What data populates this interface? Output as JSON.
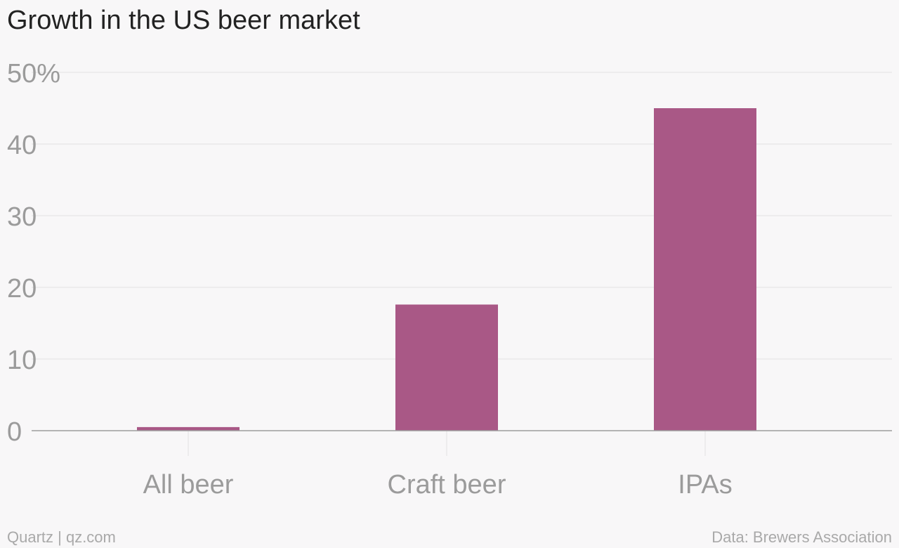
{
  "title": "Growth in the US beer market",
  "footer": {
    "source_left": "Quartz | qz.com",
    "source_right": "Data: Brewers Association"
  },
  "colors": {
    "bar": "#a95886",
    "gridline": "#e6e6e6",
    "axis": "#9e9e9e",
    "tick_label": "#9b9b9b",
    "background": "#f8f7f8"
  },
  "chart_data": {
    "type": "bar",
    "title": "Growth in the US beer market",
    "xlabel": "",
    "ylabel": "",
    "categories": [
      "All beer",
      "Craft beer",
      "IPAs"
    ],
    "values": [
      0.5,
      17.6,
      45
    ],
    "ylim": [
      0,
      50
    ],
    "y_ticks": [
      0,
      10,
      20,
      30,
      40,
      50
    ],
    "y_tick_labels": [
      "0",
      "10",
      "20",
      "30",
      "40",
      "50%"
    ],
    "grid": true,
    "legend": "none"
  }
}
